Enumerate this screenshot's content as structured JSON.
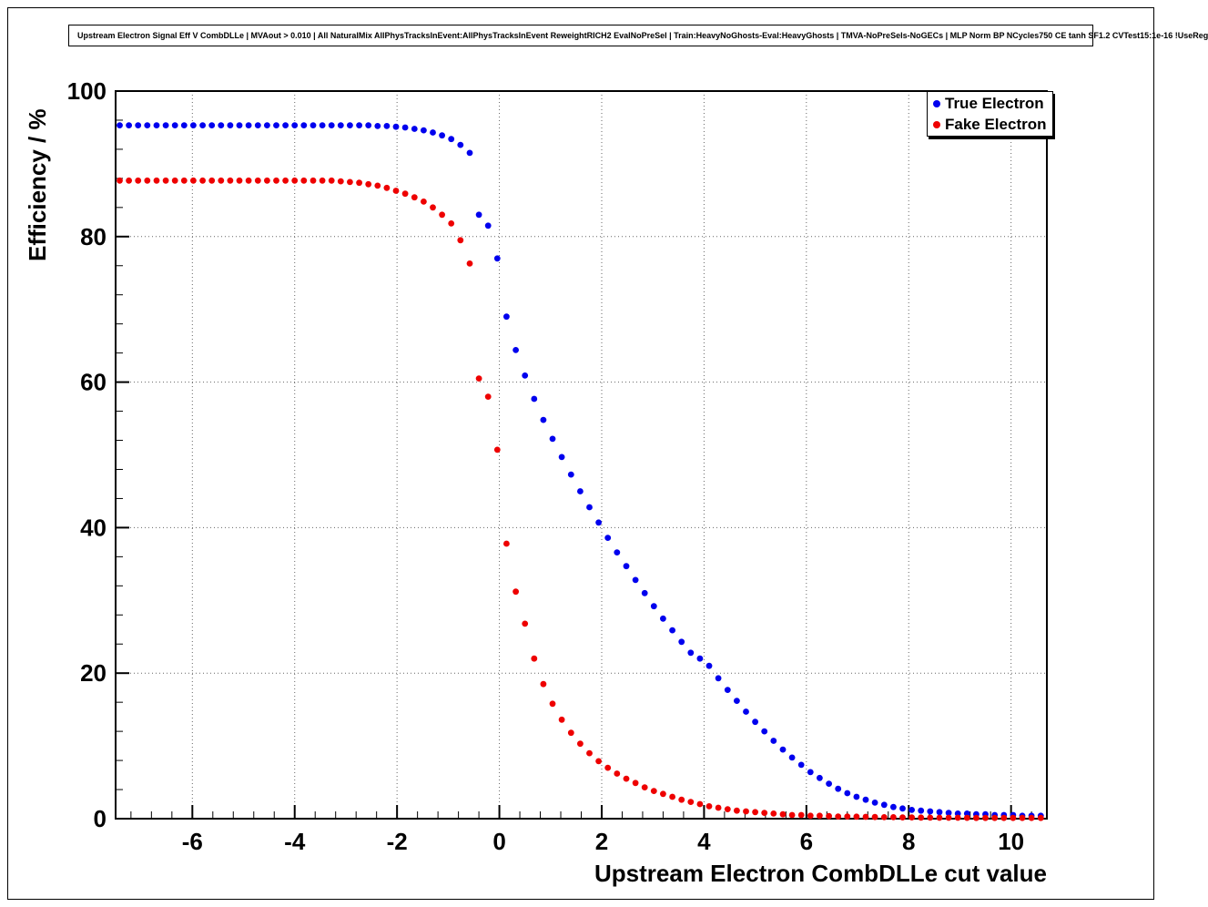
{
  "title": "Upstream Electron Signal Eff V CombDLLe | MVAout > 0.010 | All NaturalMix AllPhysTracksInEvent:AllPhysTracksInEvent ReweightRICH2 EvalNoPreSel | Train:HeavyNoGhosts-Eval:HeavyGhosts | TMVA-NoPreSels-NoGECs | MLP Norm BP NCycles750 CE tanh SF1.2 CVTest15:1e-16 !UseReg",
  "chart_data": {
    "type": "scatter",
    "title": "Upstream Electron Signal Eff V CombDLLe",
    "xlabel": "Upstream Electron CombDLLe cut value",
    "ylabel": "Efficiency / %",
    "xlim": [
      -7.5,
      10.7
    ],
    "ylim": [
      0,
      100
    ],
    "xticks": [
      -6,
      -4,
      -2,
      0,
      2,
      4,
      6,
      8,
      10
    ],
    "yticks": [
      0,
      20,
      40,
      60,
      80,
      100
    ],
    "x_minor_step": 0.4,
    "y_minor_step": 4,
    "grid": true,
    "grid_style": "dotted",
    "legend_position": "top-right",
    "marker": "filled-circle",
    "x": [
      -7.42,
      -7.24,
      -7.06,
      -6.88,
      -6.7,
      -6.52,
      -6.34,
      -6.16,
      -5.98,
      -5.8,
      -5.62,
      -5.44,
      -5.26,
      -5.08,
      -4.9,
      -4.72,
      -4.54,
      -4.36,
      -4.18,
      -4.0,
      -3.82,
      -3.64,
      -3.46,
      -3.28,
      -3.1,
      -2.92,
      -2.74,
      -2.56,
      -2.38,
      -2.2,
      -2.02,
      -1.84,
      -1.66,
      -1.48,
      -1.3,
      -1.12,
      -0.94,
      -0.76,
      -0.58,
      -0.4,
      -0.22,
      -0.04,
      0.14,
      0.32,
      0.5,
      0.68,
      0.86,
      1.04,
      1.22,
      1.4,
      1.58,
      1.76,
      1.94,
      2.12,
      2.3,
      2.48,
      2.66,
      2.84,
      3.02,
      3.2,
      3.38,
      3.56,
      3.74,
      3.92,
      4.1,
      4.28,
      4.46,
      4.64,
      4.82,
      5.0,
      5.18,
      5.36,
      5.54,
      5.72,
      5.9,
      6.08,
      6.26,
      6.44,
      6.62,
      6.8,
      6.98,
      7.16,
      7.34,
      7.52,
      7.7,
      7.88,
      8.06,
      8.24,
      8.42,
      8.6,
      8.78,
      8.96,
      9.14,
      9.32,
      9.5,
      9.68,
      9.86,
      10.04,
      10.22,
      10.4,
      10.58
    ],
    "series": [
      {
        "name": "True Electron",
        "color": "#0000ee",
        "values": [
          95.3,
          95.3,
          95.3,
          95.3,
          95.3,
          95.3,
          95.3,
          95.3,
          95.3,
          95.3,
          95.3,
          95.3,
          95.3,
          95.3,
          95.3,
          95.3,
          95.3,
          95.3,
          95.3,
          95.3,
          95.3,
          95.3,
          95.3,
          95.3,
          95.3,
          95.3,
          95.3,
          95.3,
          95.2,
          95.2,
          95.1,
          95.0,
          94.8,
          94.6,
          94.3,
          93.9,
          93.4,
          92.6,
          91.5,
          83.0,
          81.5,
          77.0,
          69.0,
          64.4,
          60.9,
          57.7,
          54.8,
          52.2,
          49.7,
          47.3,
          45.0,
          42.8,
          40.7,
          38.6,
          36.6,
          34.7,
          32.8,
          31.0,
          29.2,
          27.5,
          25.9,
          24.3,
          22.8,
          22.0,
          21.0,
          19.3,
          17.7,
          16.2,
          14.7,
          13.3,
          12.0,
          10.7,
          9.5,
          8.4,
          7.4,
          6.4,
          5.6,
          4.8,
          4.1,
          3.5,
          3.0,
          2.6,
          2.2,
          1.9,
          1.6,
          1.4,
          1.2,
          1.1,
          1.0,
          0.9,
          0.8,
          0.7,
          0.7,
          0.6,
          0.6,
          0.5,
          0.5,
          0.5,
          0.4,
          0.4,
          0.4
        ]
      },
      {
        "name": "Fake Electron",
        "color": "#ee0000",
        "values": [
          87.7,
          87.7,
          87.7,
          87.7,
          87.7,
          87.7,
          87.7,
          87.7,
          87.7,
          87.7,
          87.7,
          87.7,
          87.7,
          87.7,
          87.7,
          87.7,
          87.7,
          87.7,
          87.7,
          87.7,
          87.7,
          87.7,
          87.7,
          87.7,
          87.6,
          87.5,
          87.4,
          87.2,
          87.0,
          86.7,
          86.3,
          85.9,
          85.4,
          84.8,
          84.0,
          83.0,
          81.8,
          79.5,
          76.3,
          60.5,
          58.0,
          50.7,
          37.8,
          31.2,
          26.8,
          22.0,
          18.5,
          15.8,
          13.6,
          11.8,
          10.3,
          9.0,
          7.9,
          7.0,
          6.2,
          5.5,
          4.9,
          4.3,
          3.8,
          3.4,
          3.0,
          2.6,
          2.3,
          2.0,
          1.7,
          1.5,
          1.3,
          1.1,
          1.0,
          0.9,
          0.8,
          0.7,
          0.6,
          0.5,
          0.5,
          0.4,
          0.4,
          0.35,
          0.3,
          0.3,
          0.28,
          0.25,
          0.23,
          0.2,
          0.2,
          0.18,
          0.17,
          0.15,
          0.14,
          0.13,
          0.12,
          0.12,
          0.11,
          0.1,
          0.1,
          0.1,
          0.1,
          0.1,
          0.1,
          0.1,
          0.1
        ]
      }
    ]
  }
}
